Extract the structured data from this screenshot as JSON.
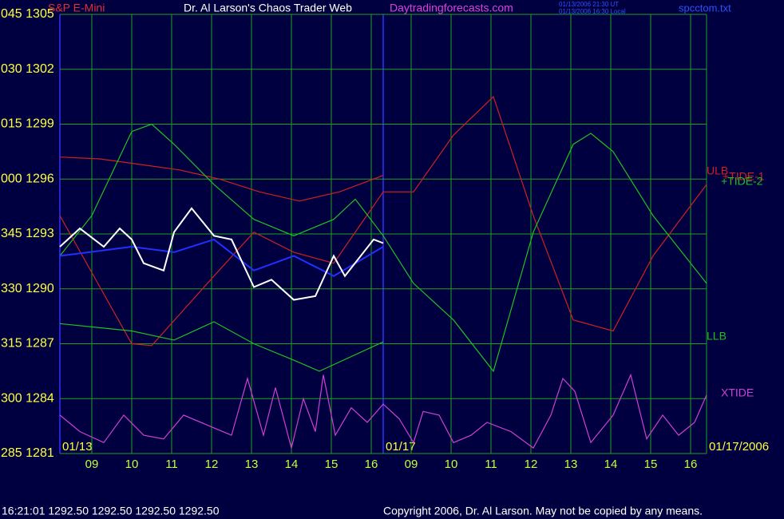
{
  "chart_data": {
    "type": "line",
    "instrument": "S&P E-Mini",
    "title": "Dr. Al Larson's Chaos Trader Web",
    "website": "Daytradingforecasts.com",
    "timestamps": [
      "01/13/2006 21:30 UT",
      "01/13/2006 16:30 Local"
    ],
    "file": "spcctom.txt",
    "date_labels": [
      "01/13",
      "01/17",
      "01/17/2006"
    ],
    "quote": "16:21:01  1292.50 1292.50 1292.50 1292.50",
    "copyright": "Copyright 2006, Dr. Al Larson. May not be copied by any means.",
    "grid": true,
    "xlim": [
      0,
      16.2
    ],
    "ylim": [
      1281,
      1305
    ],
    "yticks": [
      {
        "value": 1305,
        "label": "045 1305"
      },
      {
        "value": 1302,
        "label": "030 1302"
      },
      {
        "value": 1299,
        "label": "015 1299"
      },
      {
        "value": 1296,
        "label": "000 1296"
      },
      {
        "value": 1293,
        "label": "345 1293"
      },
      {
        "value": 1290,
        "label": "330 1290"
      },
      {
        "value": 1287,
        "label": "315 1287"
      },
      {
        "value": 1284,
        "label": "300 1284"
      },
      {
        "value": 1281,
        "label": "285 1281"
      }
    ],
    "xticks": [
      {
        "value": 0.8,
        "label": "09"
      },
      {
        "value": 1.8,
        "label": "10"
      },
      {
        "value": 2.8,
        "label": "11"
      },
      {
        "value": 3.8,
        "label": "12"
      },
      {
        "value": 4.8,
        "label": "13"
      },
      {
        "value": 5.8,
        "label": "14"
      },
      {
        "value": 6.8,
        "label": "15"
      },
      {
        "value": 7.8,
        "label": "16"
      },
      {
        "value": 8.8,
        "label": "09"
      },
      {
        "value": 9.8,
        "label": "10"
      },
      {
        "value": 10.8,
        "label": "11"
      },
      {
        "value": 11.8,
        "label": "12"
      },
      {
        "value": 12.8,
        "label": "13"
      },
      {
        "value": 13.8,
        "label": "14"
      },
      {
        "value": 14.8,
        "label": "15"
      },
      {
        "value": 15.8,
        "label": "16"
      }
    ],
    "series": [
      {
        "name": "ULB",
        "color": "#d02020",
        "x": [
          0,
          1,
          2,
          3,
          4,
          5,
          6,
          7,
          8.1
        ],
        "values": [
          1297.2,
          1297.1,
          1296.8,
          1296.5,
          1296.0,
          1295.3,
          1294.8,
          1295.3,
          1296.2
        ]
      },
      {
        "name": "+TIDE-1",
        "color": "#d02020",
        "x": [
          0,
          1.8,
          2.3,
          3.86,
          4.86,
          5.86,
          6.86,
          8.1,
          8.86,
          9.86,
          10.86,
          11.86,
          12.86,
          13.86,
          14.86,
          16.2
        ],
        "values": [
          1294.0,
          1287.0,
          1286.9,
          1290.7,
          1293.1,
          1292.0,
          1291.4,
          1295.3,
          1295.3,
          1298.4,
          1300.5,
          1294.0,
          1288.3,
          1287.7,
          1291.8,
          1295.7
        ]
      },
      {
        "name": "+TIDE-2",
        "color": "#20c020",
        "x": [
          0,
          0.8,
          1.8,
          2.3,
          2.86,
          3.86,
          4.86,
          5.86,
          6.86,
          7.4,
          8.1,
          8.86,
          9.86,
          10.86,
          11.86,
          12.86,
          13.3,
          13.86,
          14.86,
          16.2
        ],
        "values": [
          1291.8,
          1294.0,
          1298.6,
          1299.0,
          1297.9,
          1295.7,
          1293.8,
          1292.9,
          1293.8,
          1294.9,
          1292.9,
          1290.3,
          1288.3,
          1285.5,
          1293.1,
          1297.9,
          1298.5,
          1297.5,
          1294.0,
          1290.3
        ]
      },
      {
        "name": "LLB",
        "color": "#20c020",
        "x": [
          0,
          1.8,
          2.86,
          3.86,
          4.86,
          5.86,
          6.5,
          8.1
        ],
        "values": [
          1288.1,
          1287.7,
          1287.2,
          1288.2,
          1287.0,
          1286.1,
          1285.5,
          1287.1
        ]
      },
      {
        "name": "XTIDE",
        "color": "#d040d0",
        "x": [
          0,
          0.5,
          1.1,
          1.6,
          2.1,
          2.6,
          3.1,
          3.86,
          4.3,
          4.7,
          5.1,
          5.4,
          5.8,
          6.1,
          6.4,
          6.6,
          6.9,
          7.3,
          7.7,
          8.1,
          8.5,
          8.86,
          9.1,
          9.5,
          9.86,
          10.3,
          10.7,
          11.3,
          11.86,
          12.3,
          12.6,
          12.9,
          13.3,
          13.86,
          14.3,
          14.7,
          15.1,
          15.5,
          15.9,
          16.2
        ],
        "values": [
          1283.1,
          1282.2,
          1281.6,
          1283.1,
          1282.0,
          1281.8,
          1283.1,
          1282.4,
          1282.0,
          1285.1,
          1282.0,
          1284.6,
          1281.3,
          1284.0,
          1282.2,
          1285.3,
          1282.0,
          1283.5,
          1282.7,
          1283.7,
          1282.9,
          1281.6,
          1283.3,
          1283.1,
          1281.6,
          1282.0,
          1282.7,
          1282.2,
          1281.3,
          1283.1,
          1285.1,
          1284.4,
          1281.6,
          1283.1,
          1285.3,
          1281.8,
          1283.1,
          1282.0,
          1282.7,
          1284.2
        ]
      },
      {
        "color": "#2030ff",
        "x": [
          0,
          1.8,
          2.86,
          3.86,
          4.86,
          5.86,
          6.86,
          8.1
        ],
        "values": [
          1291.8,
          1292.3,
          1292.0,
          1292.7,
          1291.0,
          1291.8,
          1290.7,
          1292.3
        ]
      },
      {
        "color": "#ffffff",
        "x": [
          0,
          0.5,
          1.1,
          1.5,
          1.8,
          2.1,
          2.6,
          2.86,
          3.3,
          3.86,
          4.3,
          4.86,
          5.3,
          5.86,
          6.4,
          6.86,
          7.14,
          7.86,
          8.1
        ],
        "values": [
          1292.3,
          1293.3,
          1292.3,
          1293.3,
          1292.7,
          1291.4,
          1291.0,
          1293.1,
          1294.4,
          1292.9,
          1292.7,
          1290.1,
          1290.5,
          1289.4,
          1289.6,
          1291.8,
          1290.7,
          1292.7,
          1292.5
        ]
      }
    ]
  }
}
